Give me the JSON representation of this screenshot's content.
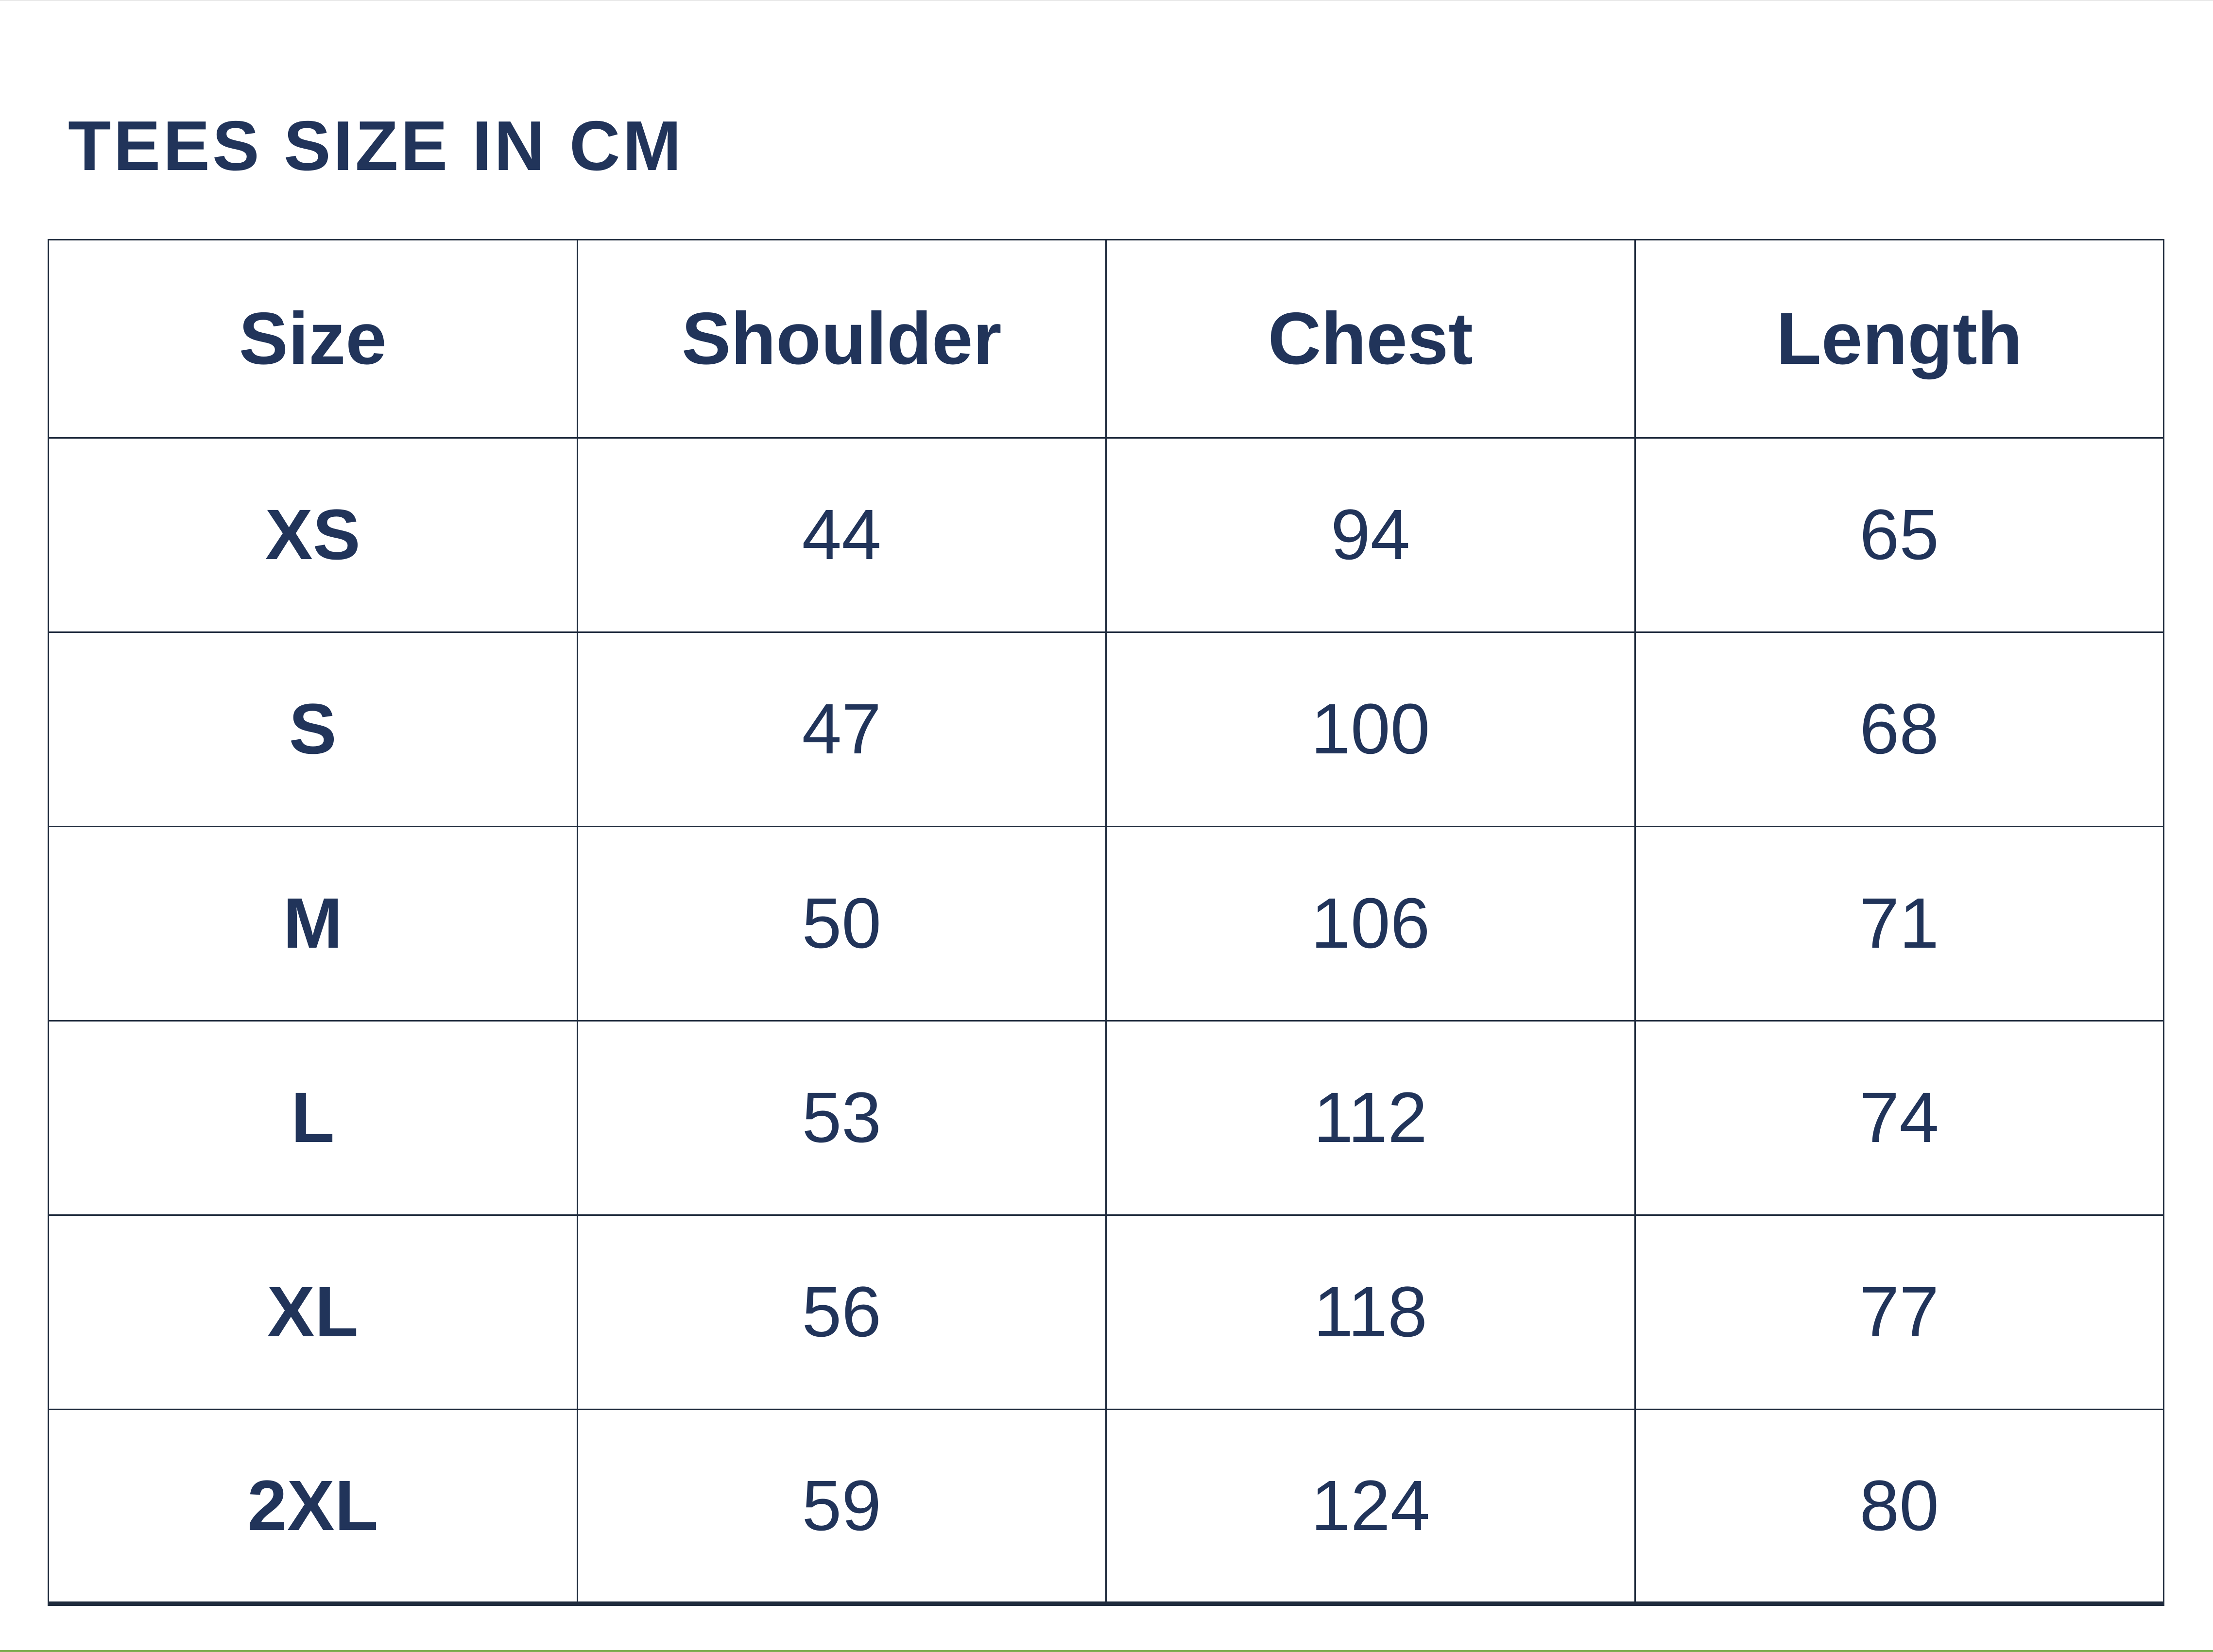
{
  "page": {
    "title": "TEES SIZE IN CM"
  },
  "size_table": {
    "columns": [
      "Size",
      "Shoulder",
      "Chest",
      "Length"
    ],
    "rows": [
      {
        "size": "XS",
        "shoulder": "44",
        "chest": "94",
        "length": "65"
      },
      {
        "size": "S",
        "shoulder": "47",
        "chest": "100",
        "length": "68"
      },
      {
        "size": "M",
        "shoulder": "50",
        "chest": "106",
        "length": "71"
      },
      {
        "size": "L",
        "shoulder": "53",
        "chest": "112",
        "length": "74"
      },
      {
        "size": "XL",
        "shoulder": "56",
        "chest": "118",
        "length": "77"
      },
      {
        "size": "2XL",
        "shoulder": "59",
        "chest": "124",
        "length": "80"
      }
    ]
  },
  "colors": {
    "background": "#ffffff",
    "text_navy": "#21345a",
    "grid_border": "#1f2b3d",
    "bottom_accent_green": "#7fad52"
  }
}
